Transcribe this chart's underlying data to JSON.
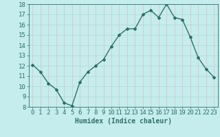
{
  "x": [
    0,
    1,
    2,
    3,
    4,
    5,
    6,
    7,
    8,
    9,
    10,
    11,
    12,
    13,
    14,
    15,
    16,
    17,
    18,
    19,
    20,
    21,
    22,
    23
  ],
  "y": [
    12.1,
    11.4,
    10.3,
    9.7,
    8.4,
    8.1,
    10.4,
    11.4,
    12.0,
    12.6,
    13.9,
    15.0,
    15.6,
    15.6,
    17.0,
    17.4,
    16.7,
    18.0,
    16.7,
    16.5,
    14.8,
    12.8,
    11.7,
    10.9
  ],
  "line_color": "#2d7068",
  "marker": "D",
  "marker_size": 2.0,
  "bg_color": "#c5eded",
  "grid_color_v": "#e8b8b8",
  "grid_color_h": "#a8d8d8",
  "xlabel": "Humidex (Indice chaleur)",
  "xlim": [
    -0.5,
    23.5
  ],
  "ylim": [
    8,
    18
  ],
  "yticks": [
    8,
    9,
    10,
    11,
    12,
    13,
    14,
    15,
    16,
    17,
    18
  ],
  "xticks": [
    0,
    1,
    2,
    3,
    4,
    5,
    6,
    7,
    8,
    9,
    10,
    11,
    12,
    13,
    14,
    15,
    16,
    17,
    18,
    19,
    20,
    21,
    22,
    23
  ],
  "axis_fontsize": 6.5,
  "label_fontsize": 7.0,
  "linewidth": 1.0
}
